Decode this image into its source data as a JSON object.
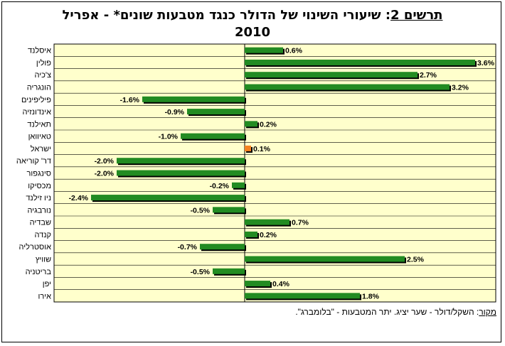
{
  "chart_data": {
    "type": "bar",
    "orientation": "horizontal",
    "title_prefix": "תרשים 2",
    "title": ": שיעורי השינוי של הדולר כנגד מטבעות שונים* - אפריל 2010",
    "categories": [
      "איסלנד",
      "פולין",
      "צ'כיה",
      "הונגריה",
      "פיליפינים",
      "אינדונזיה",
      "תאילנד",
      "טאיוואן",
      "ישראל",
      "דר' קוריאה",
      "סינגפור",
      "מכסיקו",
      "ניו זילנד",
      "נורבגיה",
      "שבדיה",
      "קנדה",
      "אוסטרליה",
      "שוויץ",
      "בריטניה",
      "יפן",
      "אירו"
    ],
    "values": [
      0.6,
      3.6,
      2.7,
      3.2,
      -1.6,
      -0.9,
      0.2,
      -1.0,
      0.1,
      -2.0,
      -2.0,
      -0.2,
      -2.4,
      -0.5,
      0.7,
      0.2,
      -0.7,
      2.5,
      -0.5,
      0.4,
      1.8
    ],
    "value_labels": [
      "0.6%",
      "3.6%",
      "2.7%",
      "3.2%",
      "-1.6%",
      "-0.9%",
      "0.2%",
      "-1.0%",
      "0.1%",
      "-2.0%",
      "-2.0%",
      "-0.2%",
      "-2.4%",
      "-0.5%",
      "0.7%",
      "0.2%",
      "-0.7%",
      "2.5%",
      "-0.5%",
      "0.4%",
      "1.8%"
    ],
    "highlight_category": "ישראל",
    "xlim": [
      -3.0,
      3.6
    ],
    "grid": true,
    "legend": "none",
    "colors": {
      "bar": "#228B22",
      "highlight": "#F58220",
      "shadow": "#000000",
      "plot_bg": "#FFFFCC",
      "gridline": "#000000"
    }
  },
  "source": {
    "label": "מקור",
    "text": ": השקל/דולר - שער יציג. יתר המטבעות - \"בלומברג\"."
  }
}
